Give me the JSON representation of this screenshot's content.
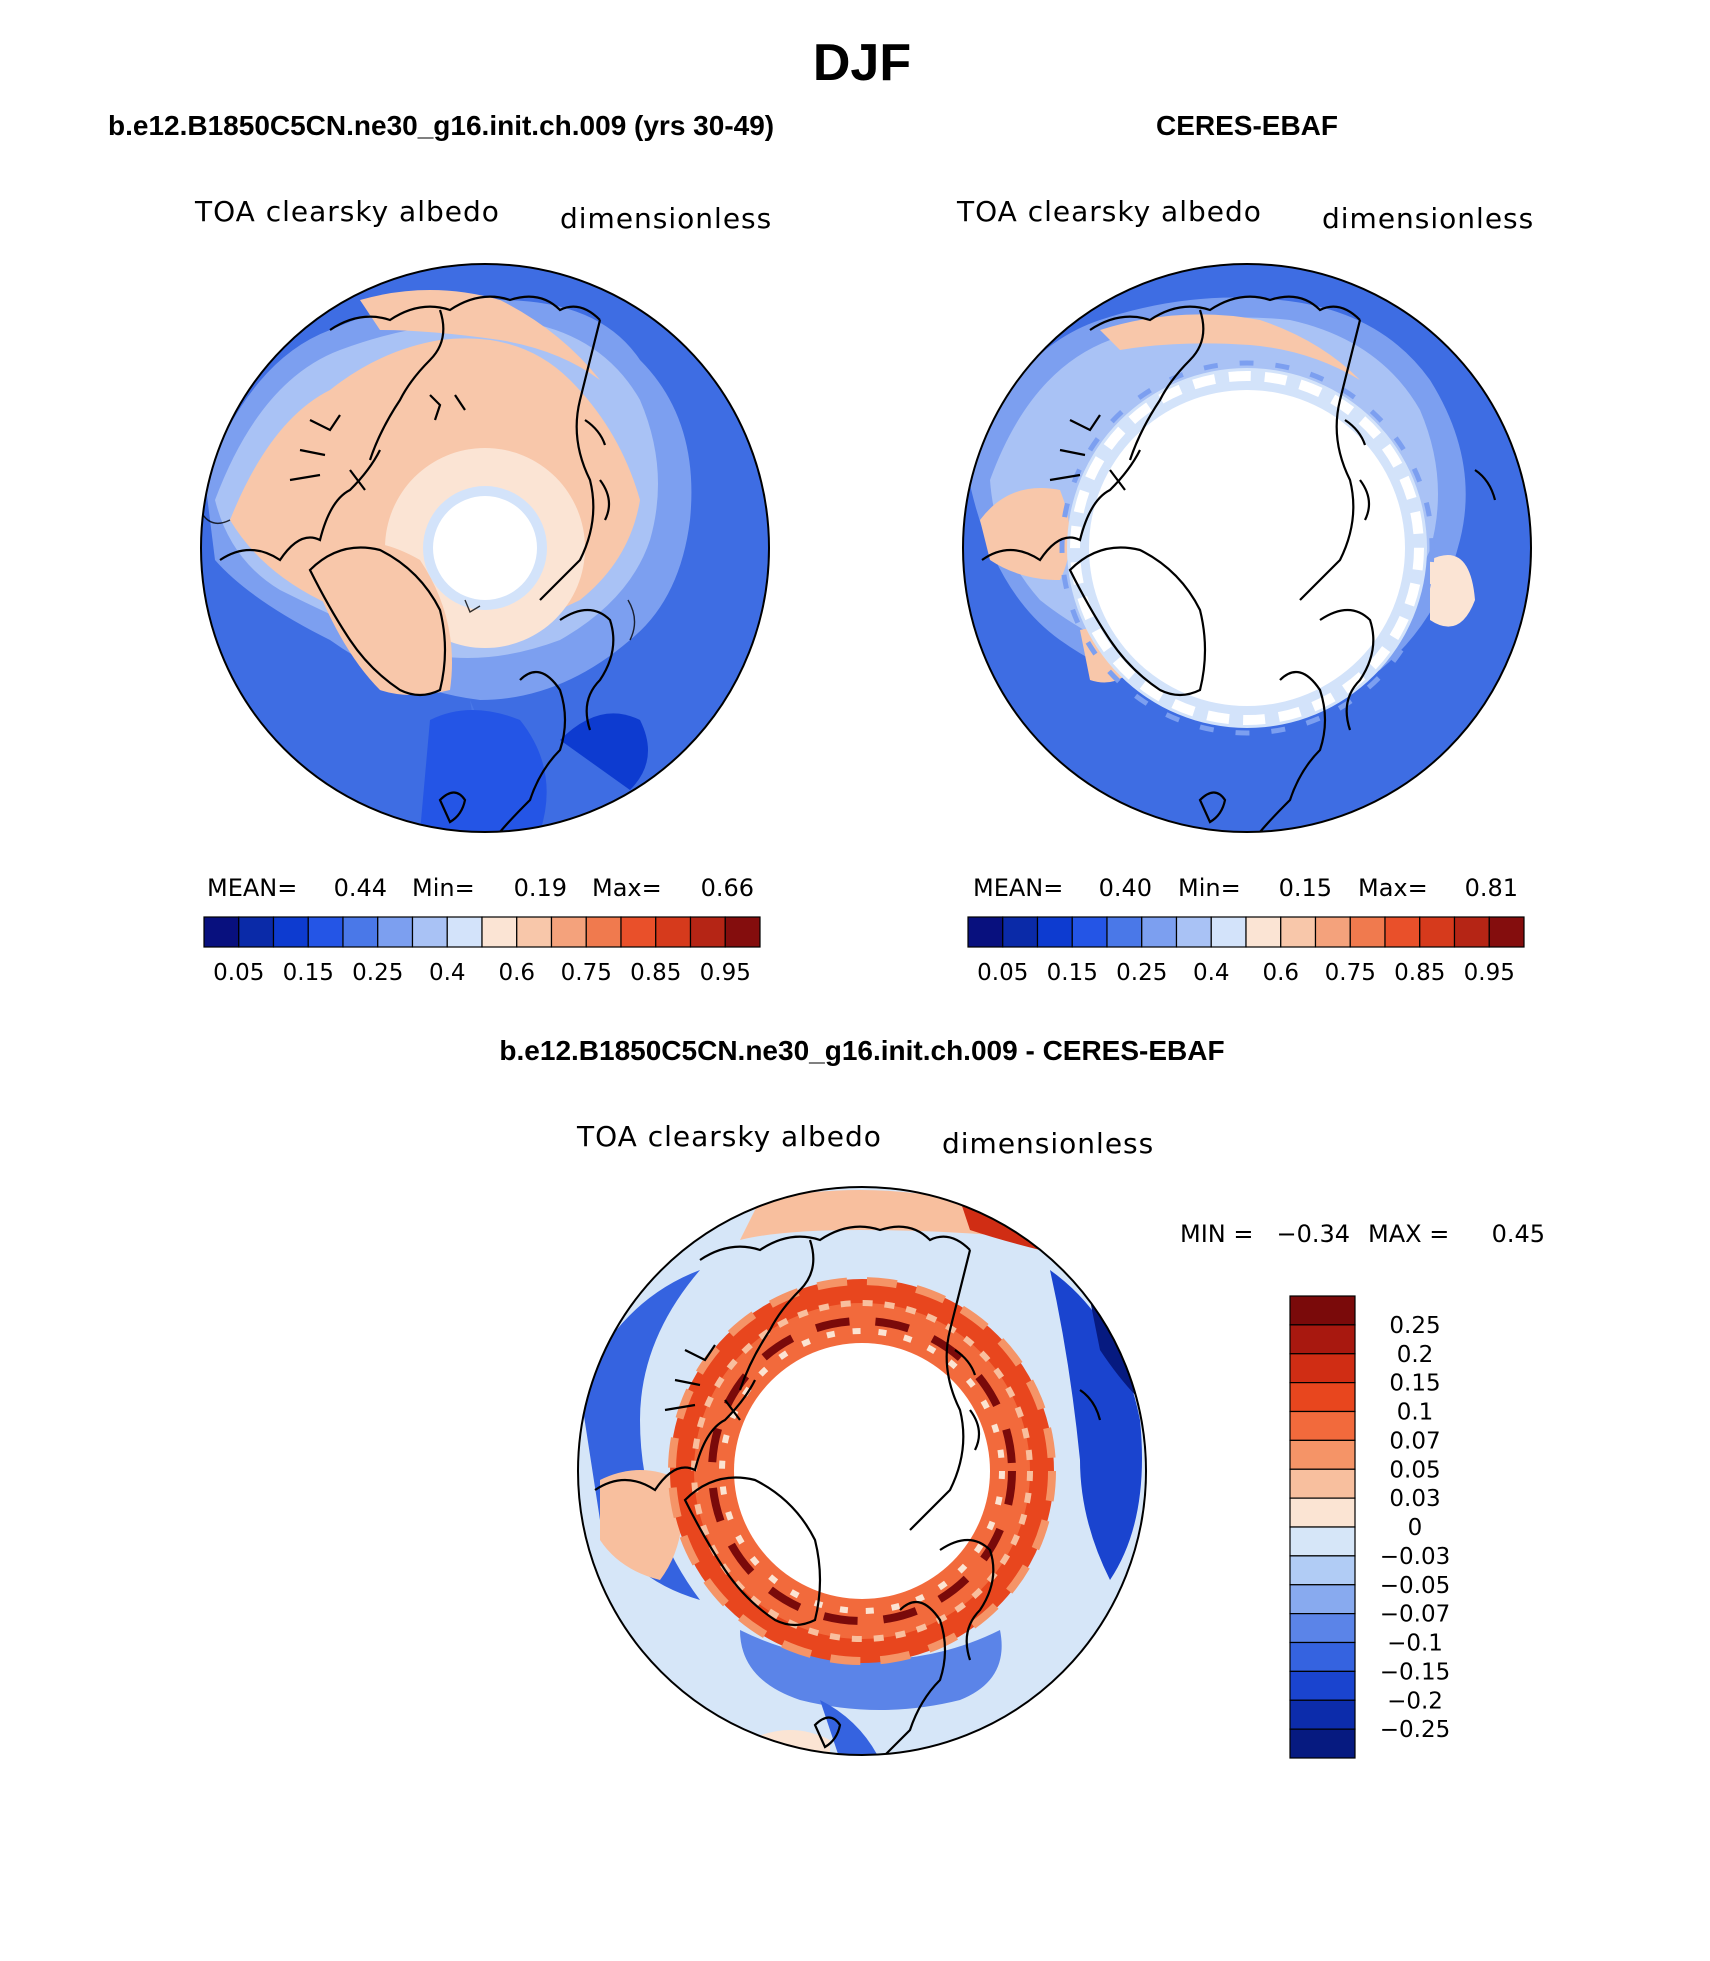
{
  "figure_title": "DJF",
  "chart_data": [
    {
      "type": "heatmap",
      "projection": "north-polar-stereographic",
      "title": "b.e12.B1850C5CN.ne30_g16.init.ch.009 (yrs 30-49)",
      "variable": "TOA clearsky albedo",
      "units": "dimensionless",
      "stats": {
        "mean_label": "MEAN=",
        "mean": "0.44",
        "min_label": "Min=",
        "min": "0.19",
        "max_label": "Max=",
        "max": "0.66"
      },
      "colorbar": {
        "orientation": "horizontal",
        "tick_labels": [
          "0.05",
          "0.15",
          "0.25",
          "0.4",
          "0.6",
          "0.75",
          "0.85",
          "0.95"
        ],
        "colors": [
          "#08107e",
          "#0a2aa8",
          "#0d3bd0",
          "#2455e6",
          "#4a78e8",
          "#7c9ff0",
          "#a9c2f5",
          "#d3e3fa",
          "#fbe4d4",
          "#f8c7aa",
          "#f4a27c",
          "#f07a4e",
          "#e9502a",
          "#d63a1c",
          "#b52515",
          "#840d0d"
        ]
      },
      "pole_missing": true
    },
    {
      "type": "heatmap",
      "projection": "north-polar-stereographic",
      "title": "CERES-EBAF",
      "variable": "TOA clearsky albedo",
      "units": "dimensionless",
      "stats": {
        "mean_label": "MEAN=",
        "mean": "0.40",
        "min_label": "Min=",
        "min": "0.15",
        "max_label": "Max=",
        "max": "0.81"
      },
      "colorbar": {
        "orientation": "horizontal",
        "tick_labels": [
          "0.05",
          "0.15",
          "0.25",
          "0.4",
          "0.6",
          "0.75",
          "0.85",
          "0.95"
        ],
        "colors": [
          "#08107e",
          "#0a2aa8",
          "#0d3bd0",
          "#2455e6",
          "#4a78e8",
          "#7c9ff0",
          "#a9c2f5",
          "#d3e3fa",
          "#fbe4d4",
          "#f8c7aa",
          "#f4a27c",
          "#f07a4e",
          "#e9502a",
          "#d63a1c",
          "#b52515",
          "#840d0d"
        ]
      },
      "polar_night_missing": true
    },
    {
      "type": "heatmap",
      "projection": "north-polar-stereographic",
      "title": "b.e12.B1850C5CN.ne30_g16.init.ch.009 - CERES-EBAF",
      "variable": "TOA clearsky albedo",
      "units": "dimensionless",
      "stats": {
        "min_label": "MIN =",
        "min": "−0.34",
        "max_label": "MAX =",
        "max": "0.45"
      },
      "colorbar": {
        "orientation": "vertical",
        "tick_labels": [
          "0.25",
          "0.2",
          "0.15",
          "0.1",
          "0.07",
          "0.05",
          "0.03",
          "0",
          "−0.03",
          "−0.05",
          "−0.07",
          "−0.1",
          "−0.15",
          "−0.2",
          "−0.25"
        ],
        "colors": [
          "#7a0a0a",
          "#a8180f",
          "#d02d14",
          "#e8461e",
          "#f26a3c",
          "#f59467",
          "#f8bf9e",
          "#fbe4d3",
          "#d6e6f8",
          "#b1ccf5",
          "#88aaef",
          "#5b84e8",
          "#3563e0",
          "#1a44cf",
          "#0c2cab",
          "#061a80"
        ]
      }
    }
  ]
}
